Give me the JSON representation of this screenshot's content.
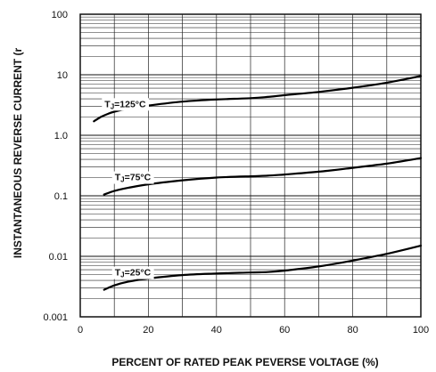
{
  "chart_data": {
    "type": "line",
    "title": "",
    "xlabel": "PERCENT OF RATED PEAK PEVERSE VOLTAGE (%)",
    "ylabel": "INSTANTANEOUS REVERSE CURRENT (r",
    "xlim": [
      0,
      100
    ],
    "ylim": [
      0.001,
      100
    ],
    "yscale": "log",
    "grid": true,
    "x_ticks": [
      "0",
      "20",
      "40",
      "60",
      "80",
      "100"
    ],
    "y_ticks": [
      "0.001",
      "0.01",
      "0.1",
      "1.0",
      "10",
      "100"
    ],
    "series": [
      {
        "name": "TJ=125°C",
        "label_main": "T",
        "label_sub": "J",
        "label_rest": "=125°C",
        "x": [
          4,
          6,
          8,
          10,
          14,
          20,
          30,
          40,
          50,
          55,
          60,
          70,
          80,
          90,
          100
        ],
        "y": [
          1.7,
          2.0,
          2.25,
          2.45,
          2.75,
          3.1,
          3.6,
          3.9,
          4.1,
          4.3,
          4.6,
          5.2,
          6.1,
          7.4,
          9.5
        ]
      },
      {
        "name": "TJ=75°C",
        "label_main": "T",
        "label_sub": "J",
        "label_rest": "=75°C",
        "x": [
          7,
          10,
          14,
          20,
          30,
          40,
          50,
          55,
          60,
          70,
          80,
          90,
          100
        ],
        "y": [
          0.105,
          0.12,
          0.135,
          0.155,
          0.18,
          0.2,
          0.21,
          0.215,
          0.225,
          0.25,
          0.29,
          0.34,
          0.42
        ]
      },
      {
        "name": "TJ=25°C",
        "label_main": "T",
        "label_sub": "J",
        "label_rest": "=25°C",
        "x": [
          7,
          10,
          14,
          20,
          30,
          40,
          50,
          55,
          60,
          70,
          80,
          90,
          100
        ],
        "y": [
          0.0028,
          0.0033,
          0.0038,
          0.0043,
          0.0049,
          0.0052,
          0.0054,
          0.0055,
          0.0058,
          0.0068,
          0.0085,
          0.011,
          0.015
        ]
      }
    ]
  }
}
